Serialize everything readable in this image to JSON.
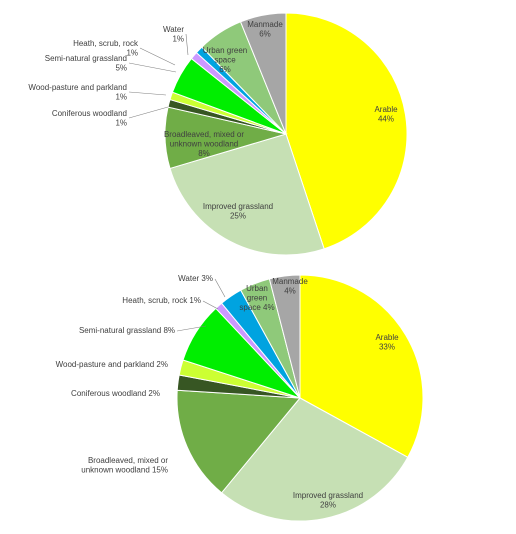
{
  "chart_data": [
    {
      "type": "pie",
      "title": "",
      "slices": [
        {
          "name": "Arable",
          "value": 44,
          "label": "44%",
          "color": "#ffff00"
        },
        {
          "name": "Improved grassland",
          "value": 25,
          "label": "25%",
          "color": "#c6e0b4"
        },
        {
          "name": "Broadleaved, mixed or unknown woodland",
          "value": 8,
          "label": "8%",
          "color": "#70ad47"
        },
        {
          "name": "Coniferous woodland",
          "value": 1,
          "label": "1%",
          "color": "#375623"
        },
        {
          "name": "Wood-pasture and parkland",
          "value": 1,
          "label": "1%",
          "color": "#ccff33"
        },
        {
          "name": "Semi-natural grassland",
          "value": 5,
          "label": "5%",
          "color": "#00ee00"
        },
        {
          "name": "Heath, scrub, rock",
          "value": 1,
          "label": "1%",
          "color": "#cc99ff"
        },
        {
          "name": "Water",
          "value": 1,
          "label": "1%",
          "color": "#00a3e0"
        },
        {
          "name": "Urban green space",
          "value": 6,
          "label": "6%",
          "color": "#8fc97a"
        },
        {
          "name": "Manmade",
          "value": 6,
          "label": "6%",
          "color": "#a6a6a6"
        }
      ]
    },
    {
      "type": "pie",
      "title": "",
      "slices": [
        {
          "name": "Arable",
          "value": 33,
          "label": "33%",
          "color": "#ffff00"
        },
        {
          "name": "Improved grassland",
          "value": 28,
          "label": "28%",
          "color": "#c6e0b4"
        },
        {
          "name": "Broadleaved, mixed or unknown woodland",
          "value": 15,
          "label": "15%",
          "color": "#70ad47"
        },
        {
          "name": "Coniferous woodland",
          "value": 2,
          "label": "2%",
          "color": "#375623"
        },
        {
          "name": "Wood-pasture and parkland",
          "value": 2,
          "label": "2%",
          "color": "#ccff33"
        },
        {
          "name": "Semi-natural grassland",
          "value": 8,
          "label": "8%",
          "color": "#00ee00"
        },
        {
          "name": "Heath, scrub, rock",
          "value": 1,
          "label": "1%",
          "color": "#cc99ff"
        },
        {
          "name": "Water",
          "value": 3,
          "label": "3%",
          "color": "#00a3e0"
        },
        {
          "name": "Urban green space",
          "value": 4,
          "label": "4%",
          "color": "#8fc97a"
        },
        {
          "name": "Manmade",
          "value": 4,
          "label": "4%",
          "color": "#a6a6a6"
        }
      ]
    }
  ]
}
